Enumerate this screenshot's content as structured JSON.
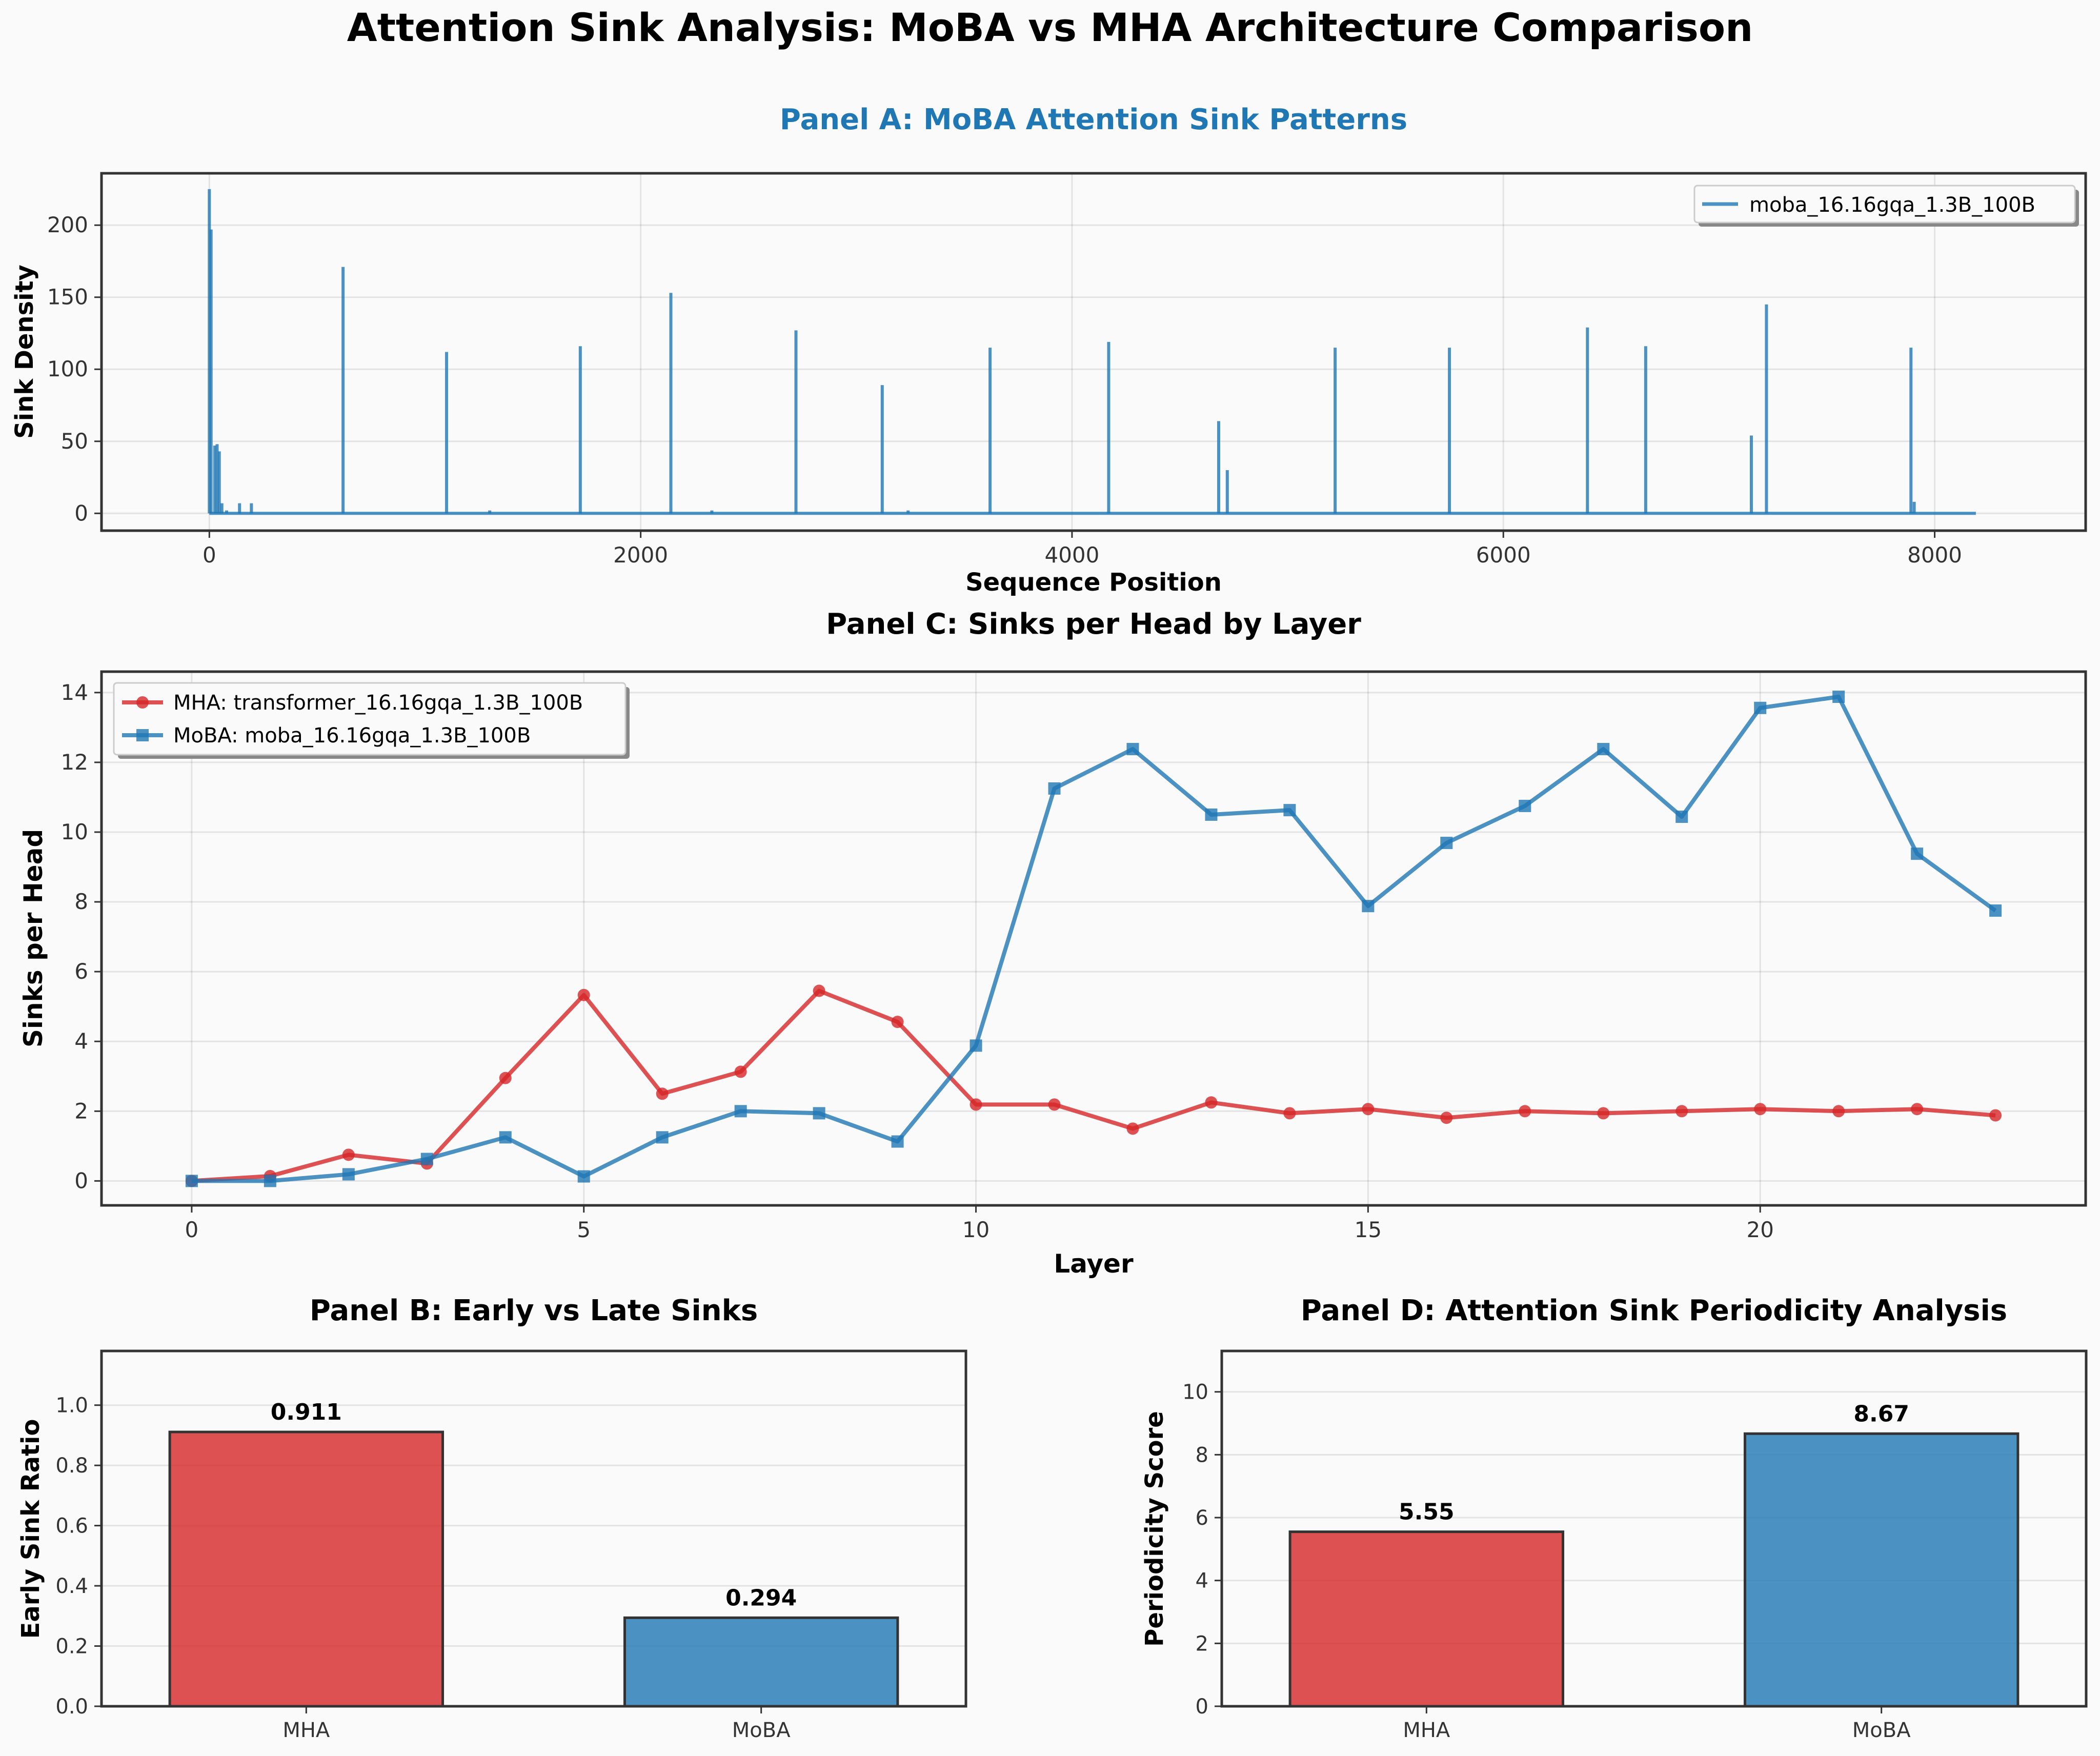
{
  "figure": {
    "title": "Attention Sink Analysis: MoBA vs MHA Architecture Comparison"
  },
  "colors": {
    "mha": "#d62728",
    "moba": "#1f77b4",
    "panel_a_title": "#1f77b4",
    "background": "#fafafa",
    "text": "#000000"
  },
  "chart_data": [
    {
      "id": "panel_a",
      "type": "line",
      "title": "Panel A: MoBA Attention Sink Patterns",
      "xlabel": "Sequence Position",
      "ylabel": "Sink Density",
      "xlim": [
        -500,
        8700
      ],
      "ylim": [
        -12,
        236
      ],
      "xticks": [
        0,
        2000,
        4000,
        6000,
        8000
      ],
      "yticks": [
        0,
        50,
        100,
        150,
        200
      ],
      "grid": true,
      "legend_position": "upper right",
      "series": [
        {
          "name": "moba_16.16gqa_1.3B_100B",
          "color": "#1f77b4",
          "x_range": [
            0,
            8191
          ],
          "baseline": 0,
          "spikes": [
            [
              0,
              225
            ],
            [
              8,
              197
            ],
            [
              25,
              47
            ],
            [
              36,
              48
            ],
            [
              46,
              43
            ],
            [
              58,
              7
            ],
            [
              80,
              2
            ],
            [
              140,
              7
            ],
            [
              195,
              7
            ],
            [
              620,
              171
            ],
            [
              1100,
              112
            ],
            [
              1300,
              2
            ],
            [
              1720,
              116
            ],
            [
              2140,
              153
            ],
            [
              2330,
              2
            ],
            [
              2720,
              127
            ],
            [
              3120,
              89
            ],
            [
              3240,
              2
            ],
            [
              3620,
              115
            ],
            [
              4170,
              119
            ],
            [
              4680,
              64
            ],
            [
              4720,
              30
            ],
            [
              5220,
              115
            ],
            [
              5750,
              115
            ],
            [
              6390,
              129
            ],
            [
              6660,
              116
            ],
            [
              7150,
              54
            ],
            [
              7220,
              145
            ],
            [
              7890,
              115
            ],
            [
              7905,
              8
            ]
          ]
        }
      ]
    },
    {
      "id": "panel_c",
      "type": "line",
      "title": "Panel C: Sinks per Head by Layer",
      "xlabel": "Layer",
      "ylabel": "Sinks per Head",
      "xlim": [
        -1.15,
        24.15
      ],
      "ylim": [
        -0.7,
        14.6
      ],
      "xticks": [
        0,
        5,
        10,
        15,
        20
      ],
      "yticks": [
        0,
        2,
        4,
        6,
        8,
        10,
        12,
        14
      ],
      "grid": true,
      "legend_position": "upper left",
      "x": [
        0,
        1,
        2,
        3,
        4,
        5,
        6,
        7,
        8,
        9,
        10,
        11,
        12,
        13,
        14,
        15,
        16,
        17,
        18,
        19,
        20,
        21,
        22,
        23
      ],
      "series": [
        {
          "name": "MHA: transformer_16.16gqa_1.3B_100B",
          "color": "#d62728",
          "marker": "circle",
          "values": [
            0.0,
            0.14,
            0.75,
            0.5,
            2.95,
            5.33,
            2.5,
            3.13,
            5.45,
            4.56,
            2.19,
            2.19,
            1.5,
            2.25,
            1.94,
            2.06,
            1.81,
            2.0,
            1.94,
            2.0,
            2.06,
            2.0,
            2.06,
            1.88
          ]
        },
        {
          "name": "MoBA: moba_16.16gqa_1.3B_100B",
          "color": "#1f77b4",
          "marker": "square",
          "values": [
            0.0,
            0.0,
            0.19,
            0.63,
            1.25,
            0.13,
            1.25,
            2.0,
            1.94,
            1.13,
            3.88,
            11.25,
            12.38,
            10.5,
            10.63,
            7.88,
            9.69,
            10.75,
            12.38,
            10.44,
            13.56,
            13.88,
            9.38,
            7.75
          ]
        }
      ]
    },
    {
      "id": "panel_b",
      "type": "bar",
      "title": "Panel B: Early vs Late Sinks",
      "xlabel": "",
      "ylabel": "Early Sink Ratio",
      "ylim": [
        0,
        1.18
      ],
      "yticks": [
        0.0,
        0.2,
        0.4,
        0.6,
        0.8,
        1.0
      ],
      "ytick_labels": [
        "0.0",
        "0.2",
        "0.4",
        "0.6",
        "0.8",
        "1.0"
      ],
      "grid": true,
      "categories": [
        "MHA",
        "MoBA"
      ],
      "values": [
        0.911,
        0.294
      ],
      "value_labels": [
        "0.911",
        "0.294"
      ],
      "bar_colors": [
        "#d62728",
        "#1f77b4"
      ]
    },
    {
      "id": "panel_d",
      "type": "bar",
      "title": "Panel D: Attention Sink Periodicity Analysis",
      "xlabel": "",
      "ylabel": "Periodicity Score",
      "ylim": [
        0,
        11.3
      ],
      "yticks": [
        0,
        2,
        4,
        6,
        8,
        10
      ],
      "ytick_labels": [
        "0",
        "2",
        "4",
        "6",
        "8",
        "10"
      ],
      "grid": true,
      "categories": [
        "MHA",
        "MoBA"
      ],
      "values": [
        5.55,
        8.67
      ],
      "value_labels": [
        "5.55",
        "8.67"
      ],
      "bar_colors": [
        "#d62728",
        "#1f77b4"
      ]
    }
  ]
}
